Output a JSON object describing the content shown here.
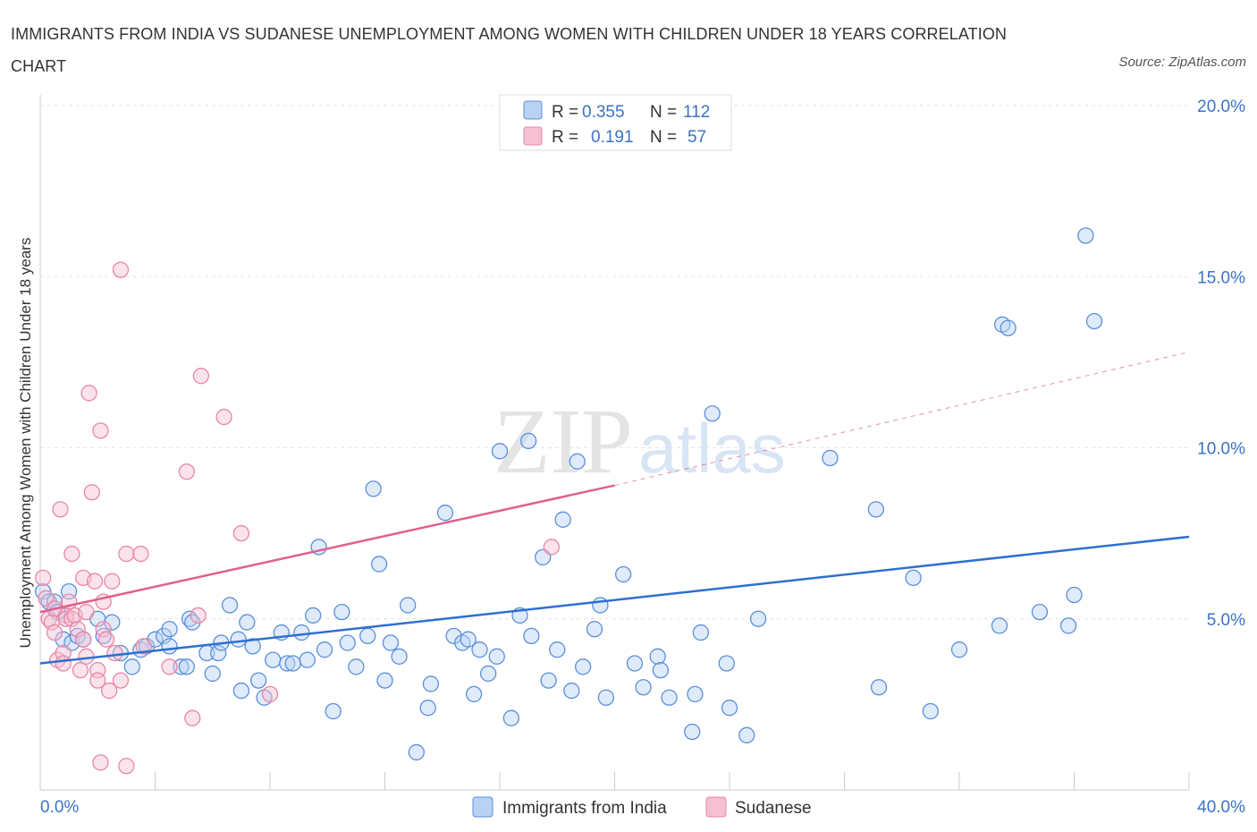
{
  "title": "IMMIGRANTS FROM INDIA VS SUDANESE UNEMPLOYMENT AMONG WOMEN WITH CHILDREN UNDER 18 YEARS CORRELATION CHART",
  "source": "Source: ZipAtlas.com",
  "watermark": {
    "zip": "ZIP",
    "atlas": "atlas"
  },
  "colors": {
    "india": "#5b8fd9",
    "india_fill": "#b9d2f3",
    "india_line": "#2f6fd0",
    "sudanese": "#e886a8",
    "sudanese_fill": "#f5c0d2",
    "sudanese_line": "#e0608e",
    "tick": "#3b72c4"
  },
  "legend": {
    "india": {
      "r_label": "R =",
      "r_value": "0.355",
      "n_label": "N =",
      "n_value": "112"
    },
    "sudanese": {
      "r_label": "R =",
      "r_value": "0.191",
      "n_label": "N =",
      "n_value": "57"
    }
  },
  "bottom_legend": {
    "india": "Immigrants from India",
    "sudanese": "Sudanese"
  },
  "chart_data": {
    "type": "scatter",
    "title": "IMMIGRANTS FROM INDIA VS SUDANESE UNEMPLOYMENT AMONG WOMEN WITH CHILDREN UNDER 18 YEARS CORRELATION CHART",
    "xlabel": "",
    "ylabel": "Unemployment Among Women with Children Under 18 years",
    "xlim": [
      0,
      40
    ],
    "ylim": [
      0,
      20
    ],
    "x_ticks": [
      "0.0%",
      "40.0%"
    ],
    "y_ticks": [
      {
        "value": 5,
        "label": "5.0%"
      },
      {
        "value": 10,
        "label": "10.0%"
      },
      {
        "value": 15,
        "label": "15.0%"
      },
      {
        "value": 20,
        "label": "20.0%"
      }
    ],
    "grid": true,
    "legend_position": "top-center",
    "series": [
      {
        "name": "Immigrants from India",
        "R": 0.355,
        "N": 112,
        "trend": {
          "x": [
            0,
            40
          ],
          "y": [
            3.7,
            7.4
          ]
        },
        "points": [
          [
            0.1,
            5.8
          ],
          [
            0.3,
            5.5
          ],
          [
            0.5,
            5.5
          ],
          [
            0.6,
            5.2
          ],
          [
            0.8,
            4.4
          ],
          [
            1.0,
            5.8
          ],
          [
            1.1,
            4.3
          ],
          [
            1.3,
            4.5
          ],
          [
            1.5,
            4.4
          ],
          [
            2.0,
            5.0
          ],
          [
            2.2,
            4.5
          ],
          [
            2.5,
            4.9
          ],
          [
            2.8,
            4.0
          ],
          [
            3.2,
            3.6
          ],
          [
            3.5,
            4.1
          ],
          [
            3.7,
            4.2
          ],
          [
            4.0,
            4.4
          ],
          [
            4.3,
            4.5
          ],
          [
            4.5,
            4.2
          ],
          [
            4.5,
            4.7
          ],
          [
            4.9,
            3.6
          ],
          [
            5.1,
            3.6
          ],
          [
            5.2,
            5.0
          ],
          [
            5.3,
            4.9
          ],
          [
            5.8,
            4.0
          ],
          [
            6.0,
            3.4
          ],
          [
            6.2,
            4.0
          ],
          [
            6.3,
            4.3
          ],
          [
            6.6,
            5.4
          ],
          [
            6.9,
            4.4
          ],
          [
            7.0,
            2.9
          ],
          [
            7.2,
            4.9
          ],
          [
            7.4,
            4.2
          ],
          [
            7.6,
            3.2
          ],
          [
            7.8,
            2.7
          ],
          [
            8.1,
            3.8
          ],
          [
            8.4,
            4.6
          ],
          [
            8.6,
            3.7
          ],
          [
            8.8,
            3.7
          ],
          [
            9.1,
            4.6
          ],
          [
            9.3,
            3.8
          ],
          [
            9.5,
            5.1
          ],
          [
            9.7,
            7.1
          ],
          [
            9.9,
            4.1
          ],
          [
            10.2,
            2.3
          ],
          [
            10.5,
            5.2
          ],
          [
            10.7,
            4.3
          ],
          [
            11.0,
            3.6
          ],
          [
            11.4,
            4.5
          ],
          [
            11.6,
            8.8
          ],
          [
            11.8,
            6.6
          ],
          [
            12.0,
            3.2
          ],
          [
            12.2,
            4.3
          ],
          [
            12.5,
            3.9
          ],
          [
            12.8,
            5.4
          ],
          [
            13.1,
            1.1
          ],
          [
            13.5,
            2.4
          ],
          [
            13.6,
            3.1
          ],
          [
            14.1,
            8.1
          ],
          [
            14.4,
            4.5
          ],
          [
            14.7,
            4.3
          ],
          [
            14.9,
            4.4
          ],
          [
            15.1,
            2.8
          ],
          [
            15.3,
            4.1
          ],
          [
            15.6,
            3.4
          ],
          [
            15.9,
            3.9
          ],
          [
            16.0,
            9.9
          ],
          [
            16.4,
            2.1
          ],
          [
            16.7,
            5.1
          ],
          [
            17.0,
            10.2
          ],
          [
            17.1,
            4.5
          ],
          [
            17.5,
            6.8
          ],
          [
            17.7,
            3.2
          ],
          [
            18.0,
            4.1
          ],
          [
            18.2,
            7.9
          ],
          [
            18.5,
            2.9
          ],
          [
            18.7,
            9.6
          ],
          [
            18.9,
            3.6
          ],
          [
            19.3,
            4.7
          ],
          [
            19.5,
            5.4
          ],
          [
            19.7,
            2.7
          ],
          [
            20.3,
            6.3
          ],
          [
            20.7,
            3.7
          ],
          [
            21.0,
            3.0
          ],
          [
            21.5,
            3.9
          ],
          [
            21.6,
            3.5
          ],
          [
            21.9,
            2.7
          ],
          [
            22.7,
            1.7
          ],
          [
            22.8,
            2.8
          ],
          [
            23.0,
            4.6
          ],
          [
            23.4,
            11.0
          ],
          [
            23.9,
            3.7
          ],
          [
            24.0,
            2.4
          ],
          [
            24.6,
            1.6
          ],
          [
            25.0,
            5.0
          ],
          [
            27.5,
            9.7
          ],
          [
            29.1,
            8.2
          ],
          [
            29.2,
            3.0
          ],
          [
            30.4,
            6.2
          ],
          [
            31.0,
            2.3
          ],
          [
            32.0,
            4.1
          ],
          [
            33.4,
            4.8
          ],
          [
            33.5,
            13.6
          ],
          [
            33.7,
            13.5
          ],
          [
            34.8,
            5.2
          ],
          [
            35.8,
            4.8
          ],
          [
            36.0,
            5.7
          ],
          [
            36.4,
            16.2
          ],
          [
            36.7,
            13.7
          ]
        ]
      },
      {
        "name": "Sudanese",
        "R": 0.191,
        "N": 57,
        "trend": {
          "x": [
            0,
            20
          ],
          "y": [
            5.2,
            8.9
          ]
        },
        "trend_extended": {
          "x": [
            20,
            40
          ],
          "y": [
            8.9,
            12.8
          ]
        },
        "points": [
          [
            0.1,
            6.2
          ],
          [
            0.2,
            5.6
          ],
          [
            0.3,
            5.0
          ],
          [
            0.4,
            4.9
          ],
          [
            0.5,
            5.3
          ],
          [
            0.5,
            4.6
          ],
          [
            0.6,
            3.8
          ],
          [
            0.7,
            8.2
          ],
          [
            0.8,
            4.0
          ],
          [
            0.8,
            3.7
          ],
          [
            0.9,
            5.1
          ],
          [
            0.9,
            5.0
          ],
          [
            1.0,
            5.5
          ],
          [
            1.1,
            6.9
          ],
          [
            1.1,
            5.0
          ],
          [
            1.2,
            5.1
          ],
          [
            1.3,
            4.7
          ],
          [
            1.4,
            3.5
          ],
          [
            1.5,
            6.2
          ],
          [
            1.5,
            4.4
          ],
          [
            1.6,
            5.2
          ],
          [
            1.6,
            3.9
          ],
          [
            1.7,
            11.6
          ],
          [
            1.8,
            8.7
          ],
          [
            1.9,
            6.1
          ],
          [
            2.0,
            3.5
          ],
          [
            2.0,
            3.2
          ],
          [
            2.1,
            0.8
          ],
          [
            2.1,
            10.5
          ],
          [
            2.2,
            4.7
          ],
          [
            2.2,
            5.5
          ],
          [
            2.3,
            4.4
          ],
          [
            2.4,
            2.9
          ],
          [
            2.5,
            6.1
          ],
          [
            2.6,
            4.0
          ],
          [
            2.8,
            15.2
          ],
          [
            2.8,
            3.2
          ],
          [
            3.0,
            6.9
          ],
          [
            3.0,
            0.7
          ],
          [
            3.5,
            6.9
          ],
          [
            3.6,
            4.2
          ],
          [
            4.5,
            3.6
          ],
          [
            5.1,
            9.3
          ],
          [
            5.3,
            2.1
          ],
          [
            5.5,
            5.1
          ],
          [
            5.6,
            12.1
          ],
          [
            6.4,
            10.9
          ],
          [
            7.0,
            7.5
          ],
          [
            8.0,
            2.8
          ],
          [
            17.8,
            7.1
          ]
        ]
      }
    ]
  }
}
